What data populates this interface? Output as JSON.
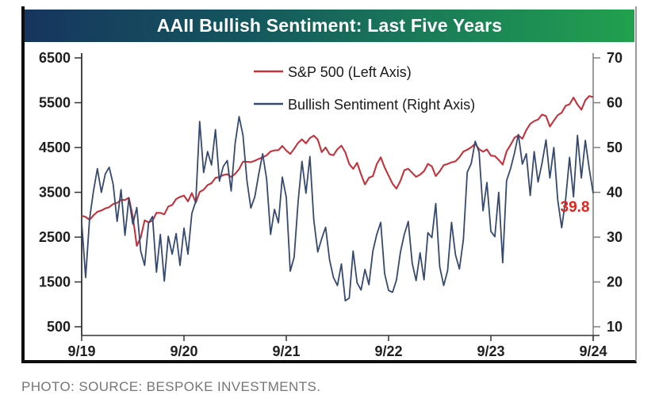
{
  "title": "AAII Bullish Sentiment: Last Five Years",
  "caption": "PHOTO: SOURCE: BESPOKE INVESTMENTS.",
  "colors": {
    "title_gradient_left": "#17355e",
    "title_gradient_right": "#21a14e",
    "sp500_line": "#c2333c",
    "sentiment_line": "#36496f",
    "left_axis": "#333333",
    "right_axis": "#7d7d7d",
    "tick_label": "#1f1f1f",
    "annotation": "#e3231d",
    "caption_text": "#767676"
  },
  "chart_data": {
    "type": "line",
    "title": "AAII Bullish Sentiment: Last Five Years",
    "x_ticks": [
      "9/19",
      "9/20",
      "9/21",
      "9/22",
      "9/23",
      "9/24"
    ],
    "left_axis": {
      "name": "S&P 500",
      "ticks": [
        6500,
        5500,
        4500,
        3500,
        2500,
        1500,
        500
      ],
      "range": [
        500,
        6500
      ]
    },
    "right_axis": {
      "name": "Bullish Sentiment",
      "ticks": [
        70,
        60,
        50,
        40,
        30,
        20,
        10
      ],
      "range": [
        10,
        70
      ]
    },
    "grid": false,
    "legend_position": "top-center-inside",
    "legend": [
      {
        "label": "S&P 500 (Left Axis)",
        "series": "sp500"
      },
      {
        "label": "Bullish Sentiment (Right Axis)",
        "series": "sentiment"
      }
    ],
    "annotation": {
      "text": "39.8",
      "value": 39.8,
      "series": "sentiment",
      "position": "last-point"
    },
    "series": [
      {
        "id": "sp500",
        "name": "S&P 500",
        "axis": "left",
        "values": [
          2978,
          2952,
          2887,
          2986,
          3067,
          3094,
          3141,
          3169,
          3240,
          3265,
          3330,
          3328,
          3380,
          2954,
          2305,
          2489,
          2875,
          2831,
          2864,
          3044,
          3041,
          3009,
          3185,
          3216,
          3351,
          3397,
          3427,
          3298,
          3484,
          3270,
          3509,
          3558,
          3663,
          3703,
          3824,
          3841,
          3886,
          3906,
          3841,
          3913,
          4019,
          4185,
          4181,
          4174,
          4204,
          4247,
          4281,
          4327,
          4412,
          4437,
          4442,
          4535,
          4433,
          4357,
          4471,
          4605,
          4683,
          4594,
          4712,
          4766,
          4677,
          4398,
          4501,
          4349,
          4329,
          4463,
          4543,
          4393,
          4132,
          4024,
          4158,
          3900,
          3675,
          3825,
          3863,
          4130,
          4280,
          4057,
          3873,
          3693,
          3583,
          3753,
          3993,
          4026,
          3934,
          3845,
          3895,
          3973,
          4136,
          4079,
          3862,
          3971,
          4105,
          4133,
          4169,
          4192,
          4282,
          4410,
          4450,
          4505,
          4582,
          4464,
          4406,
          4457,
          4320,
          4308,
          4224,
          4117,
          4415,
          4559,
          4719,
          4770,
          4697,
          4891,
          5027,
          5089,
          5124,
          5234,
          5204,
          4967,
          5100,
          5223,
          5278,
          5432,
          5465,
          5615,
          5460,
          5344,
          5554,
          5648,
          5626
        ]
      },
      {
        "id": "sentiment",
        "name": "Bullish Sentiment",
        "axis": "right",
        "values": [
          33.3,
          21.0,
          34.0,
          40.3,
          45.3,
          40.0,
          44.1,
          45.6,
          41.8,
          33.5,
          40.6,
          30.4,
          38.7,
          32.9,
          36.6,
          26.9,
          23.7,
          33.1,
          34.6,
          22.2,
          30.6,
          20.2,
          30.2,
          26.2,
          30.8,
          23.7,
          32.0,
          26.2,
          35.3,
          38.0,
          55.8,
          44.4,
          49.1,
          46.1,
          54.0,
          42.5,
          45.8,
          47.1,
          40.3,
          50.9,
          56.9,
          52.7,
          42.6,
          36.5,
          39.0,
          44.1,
          48.6,
          43.0,
          30.6,
          36.2,
          33.2,
          43.4,
          38.9,
          22.4,
          25.5,
          37.9,
          46.9,
          39.8,
          48.0,
          33.8,
          26.7,
          29.7,
          32.2,
          24.9,
          21.0,
          19.2,
          24.0,
          15.8,
          16.4,
          26.9,
          19.8,
          18.2,
          22.8,
          19.4,
          26.9,
          30.6,
          33.3,
          21.9,
          18.1,
          17.7,
          20.4,
          26.6,
          30.6,
          33.5,
          24.2,
          20.3,
          26.5,
          20.5,
          31.0,
          29.9,
          37.5,
          23.4,
          19.2,
          22.5,
          33.3,
          26.1,
          22.9,
          29.4,
          44.5,
          46.4,
          51.4,
          49.0,
          35.9,
          42.2,
          31.3,
          30.1,
          40.0,
          24.3,
          42.6,
          45.3,
          48.8,
          52.9,
          46.3,
          48.6,
          39.3,
          49.1,
          42.3,
          46.5,
          51.7,
          43.2,
          50.0,
          38.3,
          32.1,
          38.5,
          47.8,
          39.0,
          52.7,
          43.2,
          51.6,
          45.3,
          39.8
        ]
      }
    ]
  }
}
